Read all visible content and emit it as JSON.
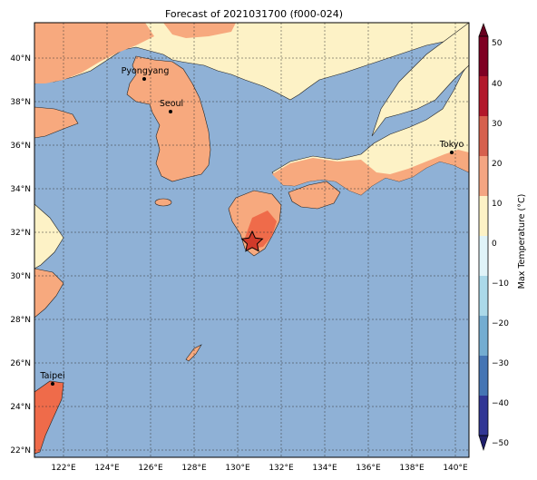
{
  "title": "Forecast of 2021031700 (f000-024)",
  "map": {
    "lat_ticks": [
      "22°N",
      "24°N",
      "26°N",
      "28°N",
      "30°N",
      "32°N",
      "34°N",
      "36°N",
      "38°N",
      "40°N"
    ],
    "lon_ticks": [
      "122°E",
      "124°E",
      "126°E",
      "128°E",
      "130°E",
      "132°E",
      "134°E",
      "136°E",
      "138°E",
      "140°E"
    ],
    "cities": [
      {
        "name": "Pyongyang"
      },
      {
        "name": "Seoul"
      },
      {
        "name": "Tokyo"
      },
      {
        "name": "Taipei"
      }
    ],
    "marker": "star"
  },
  "colorbar": {
    "label": "Max Temperature (°C)",
    "tick_labels": [
      "50",
      "40",
      "30",
      "20",
      "10",
      "0",
      "−10",
      "−20",
      "−30",
      "−40",
      "−50"
    ],
    "colors": [
      "#7f0023",
      "#b2182b",
      "#d6604d",
      "#f4a582",
      "#fddbc7",
      "#fff7cc",
      "#e0f3f8",
      "#abd9e9",
      "#74add1",
      "#4575b4",
      "#313695"
    ]
  },
  "colors": {
    "ocean": "#8fb1d6",
    "land_warm": "#f7a97e",
    "land_cool": "#fdf2c6",
    "land_hot": "#ef6b4a",
    "land_hotter": "#e04a30"
  }
}
